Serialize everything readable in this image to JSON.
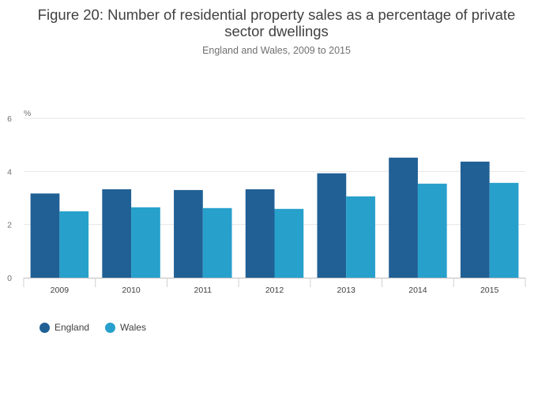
{
  "title": "Figure 20: Number of residential property sales as a percentage of private sector dwellings",
  "subtitle": "England and Wales, 2009 to 2015",
  "chart_data": {
    "type": "bar",
    "title": "Figure 20: Number of residential property sales as a percentage of private sector dwellings",
    "subtitle": "England and Wales, 2009 to 2015",
    "ylabel": "%",
    "xlabel": "",
    "categories": [
      "2009",
      "2010",
      "2011",
      "2012",
      "2013",
      "2014",
      "2015"
    ],
    "series": [
      {
        "name": "England",
        "color": "#206095",
        "values": [
          3.17,
          3.33,
          3.3,
          3.33,
          3.93,
          4.52,
          4.37
        ]
      },
      {
        "name": "Wales",
        "color": "#27a0cc",
        "values": [
          2.5,
          2.65,
          2.62,
          2.59,
          3.06,
          3.54,
          3.57
        ]
      }
    ],
    "ylim": [
      0,
      6
    ],
    "yticks": [
      "0",
      "2",
      "4",
      "6"
    ],
    "grid": true,
    "legend_position": "bottom-left"
  }
}
